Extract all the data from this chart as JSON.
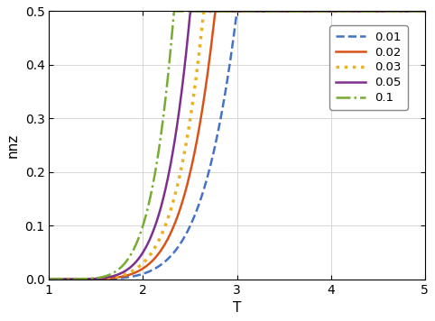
{
  "title": "",
  "xlabel": "T",
  "ylabel": "nnz",
  "xlim": [
    1,
    5
  ],
  "ylim": [
    0,
    0.5
  ],
  "xticks": [
    1,
    2,
    3,
    4,
    5
  ],
  "yticks": [
    0,
    0.1,
    0.2,
    0.3,
    0.4,
    0.5
  ],
  "series": [
    {
      "label": "0.01",
      "color": "#4472c4",
      "linestyle": "--",
      "linewidth": 1.8,
      "dash_capstyle": "round",
      "sparsity": 0.01,
      "power": 6.0
    },
    {
      "label": "0.02",
      "color": "#d95319",
      "linestyle": "-",
      "linewidth": 1.8,
      "sparsity": 0.02,
      "power": 6.0
    },
    {
      "label": "0.03",
      "color": "#edb120",
      "linestyle": ":",
      "linewidth": 2.5,
      "sparsity": 0.03,
      "power": 6.0
    },
    {
      "label": "0.05",
      "color": "#7e2f8e",
      "linestyle": "-",
      "linewidth": 1.8,
      "sparsity": 0.05,
      "power": 6.0
    },
    {
      "label": "0.1",
      "color": "#77ac30",
      "linestyle": "-.",
      "linewidth": 1.8,
      "sparsity": 0.1,
      "power": 6.0
    }
  ],
  "legend_loc": "upper right",
  "grid": true,
  "background_color": "#ffffff",
  "figsize": [
    4.82,
    3.56
  ],
  "dpi": 100
}
